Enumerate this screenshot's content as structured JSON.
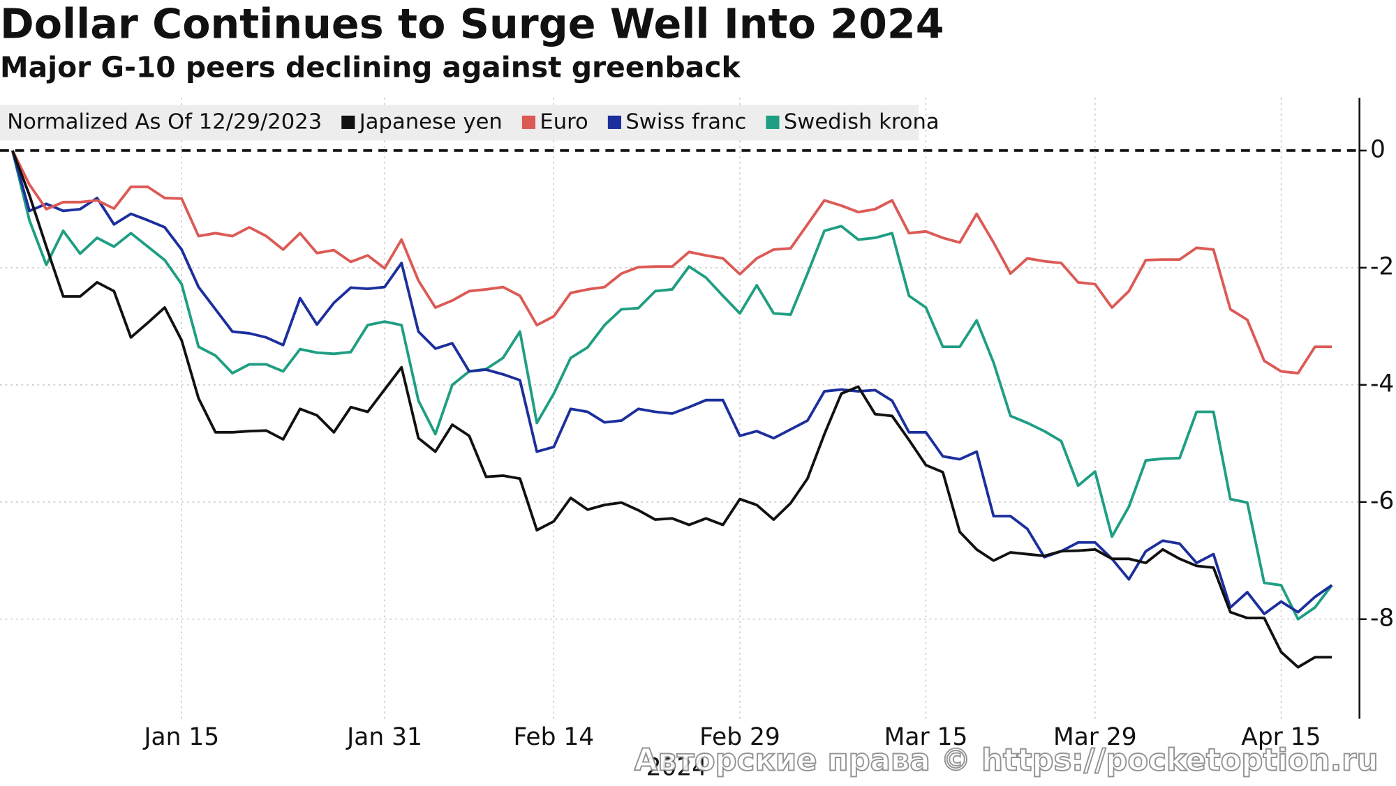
{
  "chart_data": {
    "type": "line",
    "title": "Dollar Continues to Surge Well Into 2024",
    "subtitle": "Major G-10 peers declining against greenback",
    "legend_title": "Normalized As Of 12/29/2023",
    "x_sublabel": "2024",
    "watermark": "Авторские права © https://pocketoption.ru",
    "categories": [
      null,
      null,
      null,
      null,
      null,
      null,
      null,
      null,
      null,
      null,
      "Jan 15",
      null,
      null,
      null,
      null,
      null,
      null,
      null,
      null,
      null,
      null,
      null,
      "Jan 31",
      null,
      null,
      null,
      null,
      null,
      null,
      null,
      null,
      null,
      "Feb 14",
      null,
      null,
      null,
      null,
      null,
      null,
      null,
      null,
      null,
      null,
      "Feb 29",
      null,
      null,
      null,
      null,
      null,
      null,
      null,
      null,
      null,
      null,
      "Mar 15",
      null,
      null,
      null,
      null,
      null,
      null,
      null,
      null,
      null,
      "Mar 29",
      null,
      null,
      null,
      null,
      null,
      null,
      null,
      null,
      null,
      null,
      "Apr 15",
      null,
      null,
      null
    ],
    "series": [
      {
        "name": "Japanese yen",
        "color": "#111111",
        "values": [
          0,
          -0.76,
          -1.64,
          -2.49,
          -2.49,
          -2.25,
          -2.4,
          -3.19,
          -2.94,
          -2.68,
          -3.24,
          -4.23,
          -4.81,
          -4.81,
          -4.79,
          -4.78,
          -4.93,
          -4.41,
          -4.52,
          -4.81,
          -4.38,
          -4.46,
          -4.08,
          -3.7,
          -4.91,
          -5.14,
          -4.68,
          -4.87,
          -5.57,
          -5.55,
          -5.6,
          -6.48,
          -6.33,
          -5.93,
          -6.13,
          -6.05,
          -6.01,
          -6.14,
          -6.3,
          -6.28,
          -6.39,
          -6.28,
          -6.39,
          -5.95,
          -6.05,
          -6.3,
          -6.02,
          -5.6,
          -4.84,
          -4.15,
          -4.03,
          -4.5,
          -4.53,
          -4.94,
          -5.37,
          -5.49,
          -6.51,
          -6.81,
          -7.0,
          -6.86,
          -6.89,
          -6.92,
          -6.84,
          -6.83,
          -6.81,
          -6.97,
          -6.97,
          -7.04,
          -6.81,
          -6.97,
          -7.09,
          -7.12,
          -7.88,
          -7.98,
          -7.98,
          -8.56,
          -8.82,
          -8.65,
          -8.65
        ]
      },
      {
        "name": "Euro",
        "color": "#dc5a55",
        "values": [
          0,
          -0.58,
          -1.0,
          -0.88,
          -0.88,
          -0.85,
          -0.99,
          -0.62,
          -0.62,
          -0.81,
          -0.82,
          -1.46,
          -1.41,
          -1.46,
          -1.31,
          -1.46,
          -1.69,
          -1.41,
          -1.75,
          -1.7,
          -1.9,
          -1.79,
          -2.01,
          -1.52,
          -2.22,
          -2.68,
          -2.56,
          -2.4,
          -2.37,
          -2.33,
          -2.48,
          -2.98,
          -2.83,
          -2.43,
          -2.37,
          -2.33,
          -2.1,
          -1.99,
          -1.98,
          -1.98,
          -1.73,
          -1.79,
          -1.84,
          -2.11,
          -1.84,
          -1.69,
          -1.67,
          -1.26,
          -0.85,
          -0.94,
          -1.05,
          -1.0,
          -0.85,
          -1.41,
          -1.38,
          -1.49,
          -1.57,
          -1.08,
          -1.57,
          -2.1,
          -1.84,
          -1.89,
          -1.92,
          -2.25,
          -2.28,
          -2.68,
          -2.4,
          -1.87,
          -1.86,
          -1.86,
          -1.66,
          -1.69,
          -2.71,
          -2.89,
          -3.59,
          -3.77,
          -3.8,
          -3.35,
          -3.35
        ]
      },
      {
        "name": "Swiss franc",
        "color": "#1c2f9c",
        "values": [
          0,
          -1.03,
          -0.91,
          -1.03,
          -1.0,
          -0.81,
          -1.26,
          -1.08,
          -1.19,
          -1.31,
          -1.69,
          -2.33,
          -2.71,
          -3.09,
          -3.12,
          -3.19,
          -3.32,
          -2.52,
          -2.97,
          -2.6,
          -2.34,
          -2.36,
          -2.33,
          -1.92,
          -3.09,
          -3.38,
          -3.29,
          -3.77,
          -3.74,
          -3.82,
          -3.92,
          -5.14,
          -5.06,
          -4.41,
          -4.46,
          -4.64,
          -4.61,
          -4.41,
          -4.46,
          -4.49,
          -4.38,
          -4.26,
          -4.26,
          -4.87,
          -4.79,
          -4.91,
          -4.76,
          -4.61,
          -4.11,
          -4.08,
          -4.11,
          -4.09,
          -4.27,
          -4.81,
          -4.81,
          -5.22,
          -5.27,
          -5.14,
          -6.24,
          -6.24,
          -6.46,
          -6.94,
          -6.84,
          -6.69,
          -6.69,
          -6.97,
          -7.32,
          -6.84,
          -6.66,
          -6.71,
          -7.04,
          -6.89,
          -7.8,
          -7.54,
          -7.91,
          -7.7,
          -7.88,
          -7.62,
          -7.42
        ]
      },
      {
        "name": "Swedish krona",
        "color": "#1f9e82",
        "values": [
          0,
          -1.19,
          -1.95,
          -1.37,
          -1.76,
          -1.49,
          -1.64,
          -1.41,
          -1.64,
          -1.87,
          -2.28,
          -3.35,
          -3.5,
          -3.8,
          -3.65,
          -3.65,
          -3.77,
          -3.39,
          -3.45,
          -3.47,
          -3.44,
          -2.98,
          -2.92,
          -2.98,
          -4.27,
          -4.84,
          -4.0,
          -3.77,
          -3.73,
          -3.54,
          -3.09,
          -4.65,
          -4.15,
          -3.54,
          -3.36,
          -2.98,
          -2.71,
          -2.69,
          -2.4,
          -2.37,
          -1.98,
          -2.17,
          -2.48,
          -2.78,
          -2.3,
          -2.78,
          -2.8,
          -2.1,
          -1.37,
          -1.29,
          -1.52,
          -1.49,
          -1.41,
          -2.48,
          -2.68,
          -3.35,
          -3.35,
          -2.9,
          -3.62,
          -4.53,
          -4.65,
          -4.79,
          -4.96,
          -5.72,
          -5.48,
          -6.59,
          -6.08,
          -5.29,
          -5.26,
          -5.25,
          -4.46,
          -4.46,
          -5.95,
          -6.01,
          -7.38,
          -7.42,
          -8.0,
          -7.8,
          -7.42
        ]
      }
    ],
    "ylim": [
      -9.7,
      0.9
    ],
    "yticks": [
      0,
      -2,
      -4,
      -6,
      -8
    ],
    "grid": true,
    "y_axis_side": "right"
  }
}
